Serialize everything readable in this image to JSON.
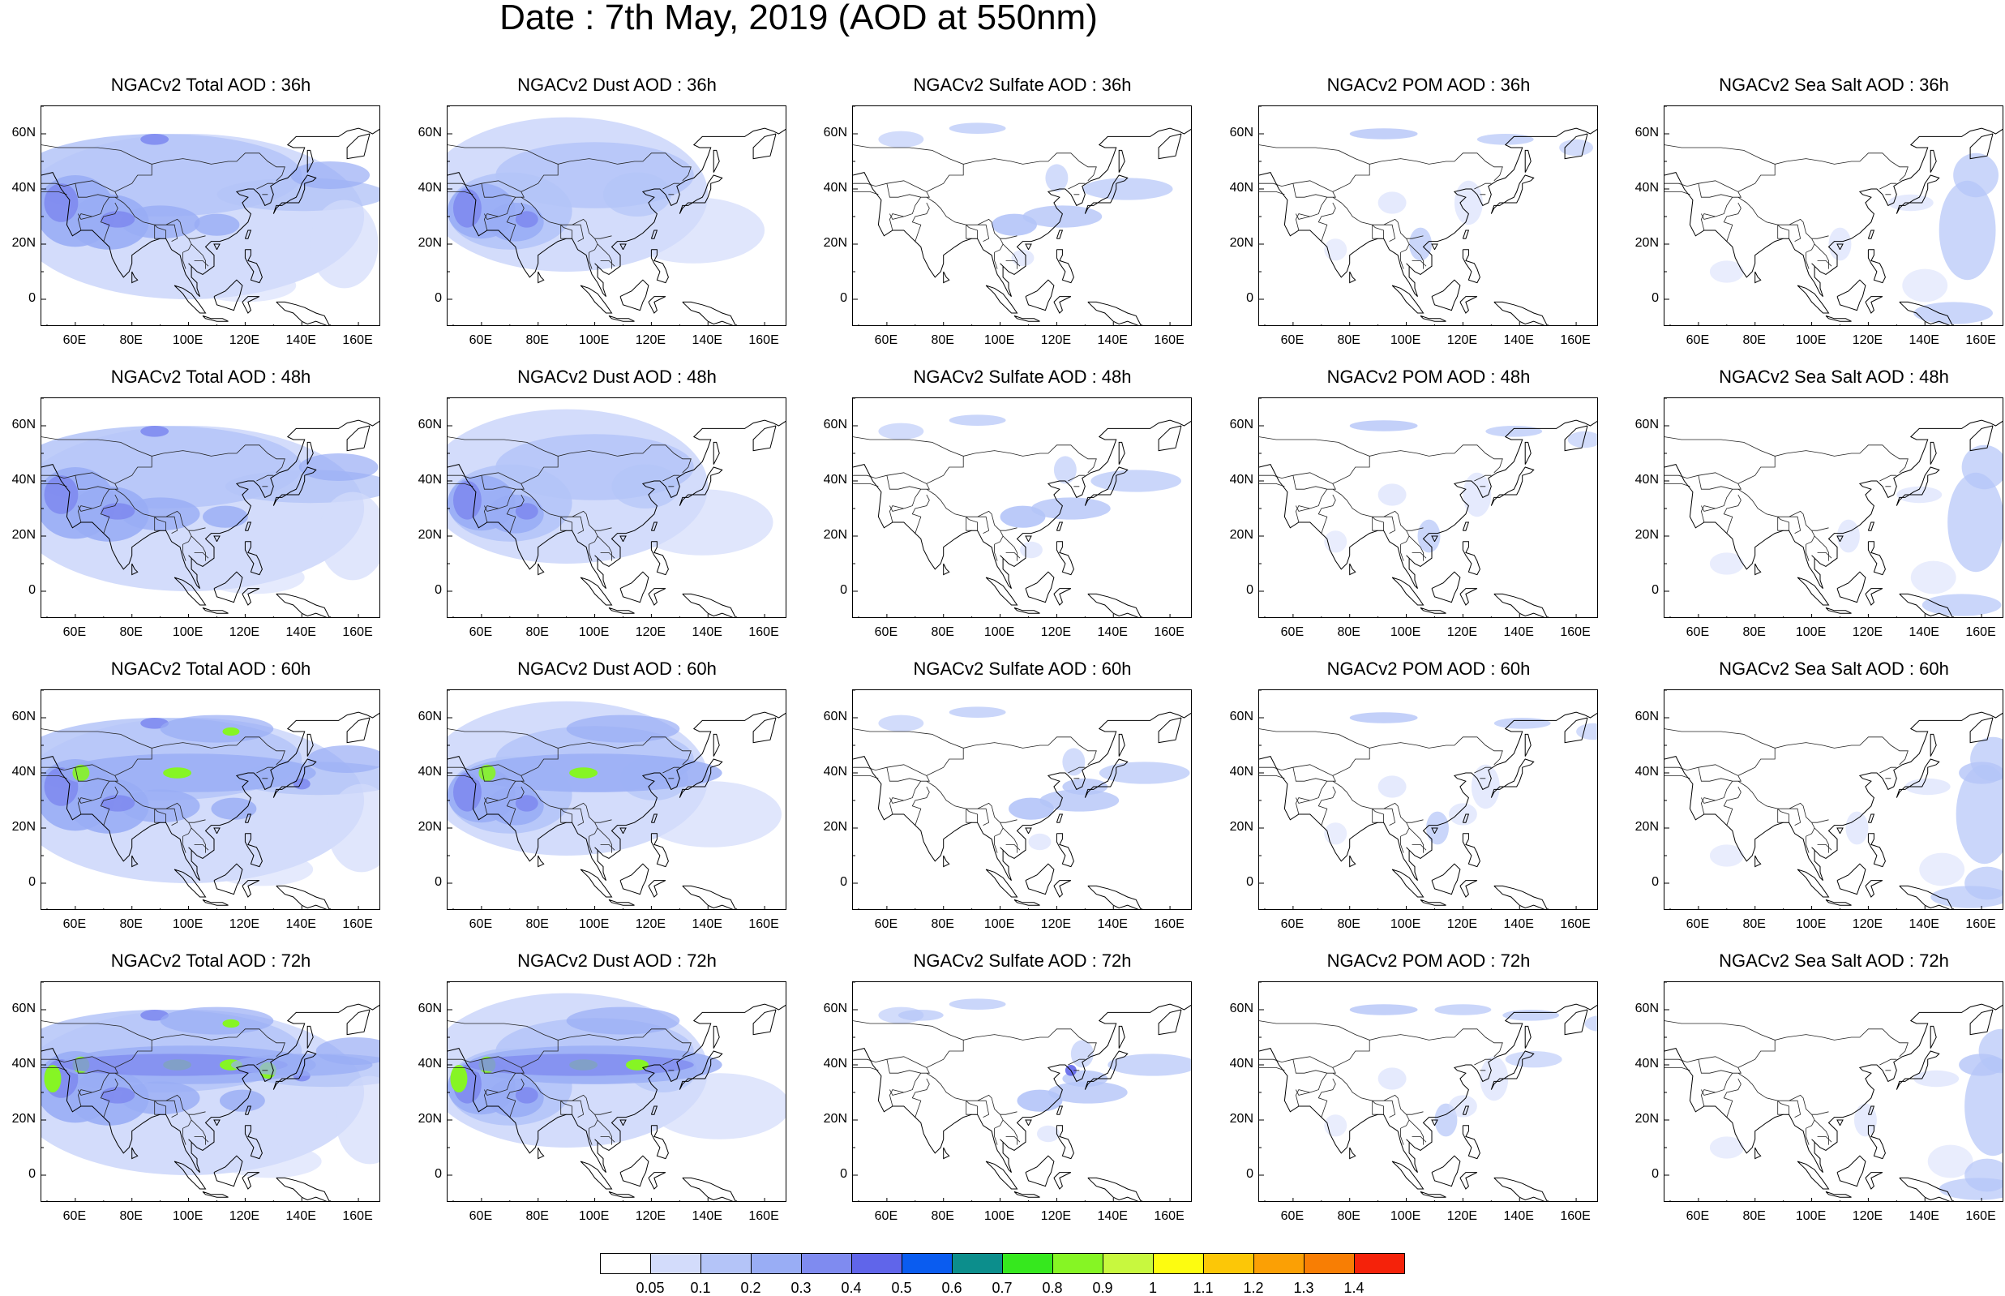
{
  "title": "Date : 7th May, 2019 (AOD at 550nm)",
  "panels": [
    [
      "NGACv2 Total AOD : 36h",
      "NGACv2 Dust AOD : 36h",
      "NGACv2 Sulfate AOD : 36h",
      "NGACv2 POM AOD : 36h",
      "NGACv2 Sea Salt AOD : 36h"
    ],
    [
      "NGACv2 Total AOD : 48h",
      "NGACv2 Dust AOD : 48h",
      "NGACv2 Sulfate AOD : 48h",
      "NGACv2 POM AOD : 48h",
      "NGACv2 Sea Salt AOD : 48h"
    ],
    [
      "NGACv2 Total AOD : 60h",
      "NGACv2 Dust AOD : 60h",
      "NGACv2 Sulfate AOD : 60h",
      "NGACv2 POM AOD : 60h",
      "NGACv2 Sea Salt AOD : 60h"
    ],
    [
      "NGACv2 Total AOD : 72h",
      "NGACv2 Dust AOD : 72h",
      "NGACv2 Sulfate AOD : 72h",
      "NGACv2 POM AOD : 72h",
      "NGACv2 Sea Salt  AOD : 72h"
    ]
  ],
  "lat_ticks": [
    "60N",
    "40N",
    "20N",
    "0"
  ],
  "lon_ticks": [
    "60E",
    "80E",
    "100E",
    "120E",
    "140E",
    "160E"
  ],
  "colorbar": {
    "labels": [
      "0.05",
      "0.1",
      "0.2",
      "0.3",
      "0.4",
      "0.5",
      "0.6",
      "0.7",
      "0.8",
      "0.9",
      "1",
      "1.1",
      "1.2",
      "1.3",
      "1.4"
    ],
    "colors": [
      "#ffffff",
      "#d3dcfb",
      "#b4c4f8",
      "#99adf5",
      "#7f8bf0",
      "#6065ea",
      "#0a5cf0",
      "#0c8e8c",
      "#36e81e",
      "#86f524",
      "#c8f83e",
      "#fdfc10",
      "#fcc707",
      "#fba005",
      "#f87e04",
      "#f5220a"
    ]
  }
}
